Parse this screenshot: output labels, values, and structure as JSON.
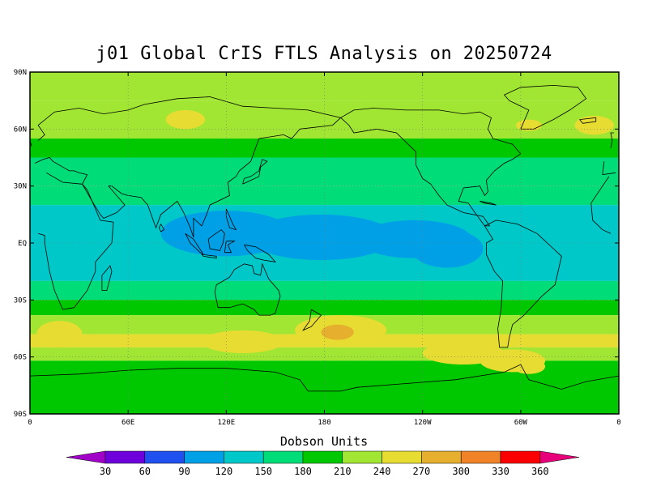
{
  "title": "j01 Global CrIS FTLS Analysis on 20250724",
  "units_label": "Dobson Units",
  "map": {
    "lon_range": [
      0,
      360
    ],
    "lat_range": [
      -90,
      90
    ],
    "lat_ticks": [
      {
        "lat": 90,
        "label": "90N"
      },
      {
        "lat": 60,
        "label": "60N"
      },
      {
        "lat": 30,
        "label": "30N"
      },
      {
        "lat": 0,
        "label": "EQ"
      },
      {
        "lat": -30,
        "label": "30S"
      },
      {
        "lat": -60,
        "label": "60S"
      },
      {
        "lat": -90,
        "label": "90S"
      }
    ],
    "lon_ticks": [
      {
        "lon": 0,
        "label": "0"
      },
      {
        "lon": 60,
        "label": "60E"
      },
      {
        "lon": 120,
        "label": "120E"
      },
      {
        "lon": 180,
        "label": "180"
      },
      {
        "lon": 240,
        "label": "120W"
      },
      {
        "lon": 300,
        "label": "60W"
      },
      {
        "lon": 360,
        "label": "0"
      }
    ],
    "grid": true
  },
  "colorbar": {
    "levels": [
      30,
      60,
      90,
      120,
      150,
      180,
      210,
      240,
      270,
      300,
      330,
      360
    ],
    "labels": [
      "30",
      "60",
      "90",
      "120",
      "150",
      "180",
      "210",
      "240",
      "270",
      "300",
      "330",
      "360"
    ],
    "colors": [
      "#a000c8",
      "#6e00dc",
      "#2050f0",
      "#00a0e6",
      "#00c8c8",
      "#00dc78",
      "#00c800",
      "#a0e632",
      "#e6dc32",
      "#e6af2d",
      "#f08228",
      "#fa0000",
      "#e6007a"
    ]
  },
  "bands": [
    {
      "lat_min": 75,
      "lat_max": 90,
      "value": 235
    },
    {
      "lat_min": 55,
      "lat_max": 75,
      "value": 215
    },
    {
      "lat_min": 45,
      "lat_max": 55,
      "value": 200
    },
    {
      "lat_min": 30,
      "lat_max": 45,
      "value": 170
    },
    {
      "lat_min": 20,
      "lat_max": 30,
      "value": 150
    },
    {
      "lat_min": -20,
      "lat_max": 20,
      "value": 130
    },
    {
      "lat_min": -30,
      "lat_max": -20,
      "value": 150
    },
    {
      "lat_min": -38,
      "lat_max": -30,
      "value": 180
    },
    {
      "lat_min": -48,
      "lat_max": -38,
      "value": 220
    },
    {
      "lat_min": -55,
      "lat_max": -48,
      "value": 245
    },
    {
      "lat_min": -62,
      "lat_max": -55,
      "value": 225
    },
    {
      "lat_min": -90,
      "lat_max": -62,
      "value": 200
    }
  ],
  "blobs": [
    {
      "lon": 120,
      "lat": 5,
      "rx": 40,
      "ry": 12,
      "value": 100
    },
    {
      "lon": 178,
      "lat": 3,
      "rx": 45,
      "ry": 12,
      "value": 100
    },
    {
      "lon": 235,
      "lat": 2,
      "rx": 35,
      "ry": 10,
      "value": 100
    },
    {
      "lon": 255,
      "lat": -3,
      "rx": 22,
      "ry": 10,
      "value": 100
    },
    {
      "lon": 190,
      "lat": -46,
      "rx": 28,
      "ry": 8,
      "value": 260
    },
    {
      "lon": 188,
      "lat": -47,
      "rx": 10,
      "ry": 4,
      "value": 285
    },
    {
      "lon": 18,
      "lat": -48,
      "rx": 14,
      "ry": 7,
      "value": 255
    },
    {
      "lon": 130,
      "lat": -52,
      "rx": 25,
      "ry": 6,
      "value": 245
    },
    {
      "lon": 265,
      "lat": -58,
      "rx": 25,
      "ry": 6,
      "value": 250
    },
    {
      "lon": 305,
      "lat": -65,
      "rx": 10,
      "ry": 4,
      "value": 265
    },
    {
      "lon": 295,
      "lat": -62,
      "rx": 20,
      "ry": 6,
      "value": 250
    },
    {
      "lon": 95,
      "lat": 65,
      "rx": 12,
      "ry": 5,
      "value": 245
    },
    {
      "lon": 345,
      "lat": 62,
      "rx": 12,
      "ry": 5,
      "value": 245
    },
    {
      "lon": 305,
      "lat": 62,
      "rx": 8,
      "ry": 3,
      "value": 265
    }
  ],
  "coastlines": [
    {
      "name": "africa",
      "points": [
        [
          -17,
          21
        ],
        [
          -10,
          30
        ],
        [
          -6,
          35
        ],
        [
          10,
          37
        ],
        [
          20,
          32
        ],
        [
          32,
          31
        ],
        [
          35,
          28
        ],
        [
          43,
          12
        ],
        [
          51,
          11
        ],
        [
          50,
          0
        ],
        [
          40,
          -10
        ],
        [
          40,
          -15
        ],
        [
          35,
          -25
        ],
        [
          27,
          -34
        ],
        [
          20,
          -35
        ],
        [
          15,
          -25
        ],
        [
          12,
          -15
        ],
        [
          9,
          0
        ],
        [
          9,
          4
        ],
        [
          5,
          5
        ],
        [
          -5,
          5
        ],
        [
          -10,
          7
        ],
        [
          -16,
          12
        ],
        [
          -17,
          21
        ]
      ]
    },
    {
      "name": "eurasia",
      "points": [
        [
          -10,
          36
        ],
        [
          -9,
          43
        ],
        [
          0,
          46
        ],
        [
          -5,
          48
        ],
        [
          5,
          54
        ],
        [
          9,
          57
        ],
        [
          5,
          62
        ],
        [
          15,
          69
        ],
        [
          30,
          71
        ],
        [
          45,
          68
        ],
        [
          60,
          70
        ],
        [
          70,
          73
        ],
        [
          90,
          76
        ],
        [
          110,
          77
        ],
        [
          130,
          72
        ],
        [
          150,
          71
        ],
        [
          170,
          70
        ],
        [
          180,
          68
        ],
        [
          190,
          66
        ],
        [
          185,
          62
        ],
        [
          165,
          60
        ],
        [
          160,
          55
        ],
        [
          155,
          57
        ],
        [
          140,
          55
        ],
        [
          135,
          43
        ],
        [
          128,
          38
        ],
        [
          126,
          35
        ],
        [
          121,
          32
        ],
        [
          122,
          25
        ],
        [
          110,
          20
        ],
        [
          108,
          15
        ],
        [
          105,
          9
        ],
        [
          100,
          13
        ],
        [
          100,
          3
        ],
        [
          98,
          8
        ],
        [
          94,
          16
        ],
        [
          90,
          22
        ],
        [
          80,
          15
        ],
        [
          77,
          8
        ],
        [
          72,
          20
        ],
        [
          68,
          24
        ],
        [
          60,
          25
        ],
        [
          56,
          26
        ],
        [
          50,
          30
        ],
        [
          48,
          30
        ],
        [
          55,
          23
        ],
        [
          58,
          20
        ],
        [
          53,
          16
        ],
        [
          45,
          13
        ],
        [
          43,
          15
        ],
        [
          38,
          22
        ],
        [
          34,
          28
        ],
        [
          32,
          31
        ],
        [
          35,
          36
        ],
        [
          30,
          37
        ],
        [
          27,
          38
        ],
        [
          24,
          38
        ],
        [
          20,
          40
        ],
        [
          14,
          43
        ],
        [
          12,
          45
        ],
        [
          8,
          44
        ],
        [
          3,
          42
        ],
        [
          -2,
          37
        ],
        [
          -10,
          36
        ]
      ]
    },
    {
      "name": "north_america",
      "points": [
        [
          190,
          66
        ],
        [
          198,
          70
        ],
        [
          210,
          71
        ],
        [
          230,
          70
        ],
        [
          250,
          70
        ],
        [
          265,
          68
        ],
        [
          275,
          69
        ],
        [
          282,
          66
        ],
        [
          280,
          60
        ],
        [
          283,
          55
        ],
        [
          295,
          52
        ],
        [
          300,
          47
        ],
        [
          295,
          44
        ],
        [
          290,
          42
        ],
        [
          284,
          38
        ],
        [
          279,
          33
        ],
        [
          280,
          27
        ],
        [
          278,
          25
        ],
        [
          275,
          30
        ],
        [
          265,
          29
        ],
        [
          262,
          22
        ],
        [
          268,
          21
        ],
        [
          272,
          16
        ],
        [
          278,
          9
        ],
        [
          281,
          9
        ],
        [
          277,
          14
        ],
        [
          265,
          16
        ],
        [
          255,
          20
        ],
        [
          250,
          25
        ],
        [
          245,
          31
        ],
        [
          240,
          34
        ],
        [
          236,
          41
        ],
        [
          236,
          48
        ],
        [
          224,
          58
        ],
        [
          212,
          60
        ],
        [
          198,
          58
        ],
        [
          195,
          62
        ],
        [
          190,
          66
        ]
      ]
    },
    {
      "name": "south_america",
      "points": [
        [
          278,
          9
        ],
        [
          285,
          12
        ],
        [
          298,
          10
        ],
        [
          310,
          5
        ],
        [
          320,
          -3
        ],
        [
          325,
          -7
        ],
        [
          321,
          -22
        ],
        [
          313,
          -28
        ],
        [
          302,
          -38
        ],
        [
          295,
          -43
        ],
        [
          293,
          -50
        ],
        [
          292,
          -55
        ],
        [
          287,
          -55
        ],
        [
          286,
          -45
        ],
        [
          288,
          -35
        ],
        [
          289,
          -20
        ],
        [
          284,
          -15
        ],
        [
          279,
          -6
        ],
        [
          279,
          0
        ],
        [
          283,
          2
        ],
        [
          278,
          9
        ]
      ]
    },
    {
      "name": "australia",
      "points": [
        [
          114,
          -22
        ],
        [
          113,
          -26
        ],
        [
          115,
          -34
        ],
        [
          122,
          -34
        ],
        [
          130,
          -32
        ],
        [
          137,
          -35
        ],
        [
          140,
          -38
        ],
        [
          147,
          -38
        ],
        [
          150,
          -37
        ],
        [
          153,
          -28
        ],
        [
          152,
          -25
        ],
        [
          146,
          -19
        ],
        [
          142,
          -11
        ],
        [
          141,
          -17
        ],
        [
          137,
          -16
        ],
        [
          136,
          -12
        ],
        [
          131,
          -11
        ],
        [
          125,
          -14
        ],
        [
          122,
          -18
        ],
        [
          114,
          -22
        ]
      ]
    },
    {
      "name": "greenland",
      "points": [
        [
          300,
          60
        ],
        [
          308,
          60
        ],
        [
          320,
          65
        ],
        [
          330,
          70
        ],
        [
          340,
          76
        ],
        [
          335,
          82
        ],
        [
          320,
          83
        ],
        [
          300,
          82
        ],
        [
          290,
          78
        ],
        [
          293,
          75
        ],
        [
          305,
          70
        ],
        [
          300,
          60
        ]
      ]
    },
    {
      "name": "antarctica",
      "points": [
        [
          0,
          -70
        ],
        [
          30,
          -69
        ],
        [
          60,
          -67
        ],
        [
          90,
          -66
        ],
        [
          120,
          -66
        ],
        [
          150,
          -68
        ],
        [
          165,
          -72
        ],
        [
          170,
          -78
        ],
        [
          190,
          -78
        ],
        [
          200,
          -76
        ],
        [
          230,
          -74
        ],
        [
          260,
          -72
        ],
        [
          290,
          -68
        ],
        [
          300,
          -64
        ],
        [
          305,
          -72
        ],
        [
          325,
          -77
        ],
        [
          340,
          -73
        ],
        [
          360,
          -70
        ]
      ]
    },
    {
      "name": "japan",
      "points": [
        [
          130,
          31
        ],
        [
          131,
          34
        ],
        [
          135,
          35
        ],
        [
          140,
          38
        ],
        [
          141,
          41
        ],
        [
          142,
          44
        ],
        [
          145,
          43
        ],
        [
          141,
          40
        ],
        [
          140,
          35
        ],
        [
          135,
          33
        ],
        [
          130,
          31
        ]
      ]
    },
    {
      "name": "uk",
      "points": [
        [
          -5,
          50
        ],
        [
          1,
          51
        ],
        [
          0,
          54
        ],
        [
          -3,
          58
        ],
        [
          -5,
          58
        ],
        [
          -4,
          54
        ],
        [
          -5,
          50
        ]
      ]
    },
    {
      "name": "madagascar",
      "points": [
        [
          44,
          -25
        ],
        [
          47,
          -25
        ],
        [
          50,
          -15
        ],
        [
          49,
          -12
        ],
        [
          44,
          -17
        ],
        [
          44,
          -25
        ]
      ]
    },
    {
      "name": "borneo",
      "points": [
        [
          109,
          2
        ],
        [
          112,
          4
        ],
        [
          117,
          7
        ],
        [
          119,
          5
        ],
        [
          118,
          0
        ],
        [
          116,
          -4
        ],
        [
          110,
          -3
        ],
        [
          109,
          2
        ]
      ]
    },
    {
      "name": "sumatra",
      "points": [
        [
          95,
          5
        ],
        [
          100,
          2
        ],
        [
          106,
          -6
        ],
        [
          104,
          -5
        ],
        [
          98,
          0
        ],
        [
          95,
          5
        ]
      ]
    },
    {
      "name": "new_guinea",
      "points": [
        [
          131,
          -1
        ],
        [
          138,
          -2
        ],
        [
          146,
          -6
        ],
        [
          150,
          -10
        ],
        [
          143,
          -9
        ],
        [
          138,
          -8
        ],
        [
          133,
          -4
        ],
        [
          131,
          -1
        ]
      ]
    },
    {
      "name": "new_zealand",
      "points": [
        [
          172,
          -35
        ],
        [
          178,
          -38
        ],
        [
          175,
          -41
        ],
        [
          172,
          -44
        ],
        [
          167,
          -46
        ],
        [
          171,
          -41
        ],
        [
          172,
          -35
        ]
      ]
    },
    {
      "name": "philippines",
      "points": [
        [
          120,
          18
        ],
        [
          122,
          14
        ],
        [
          124,
          10
        ],
        [
          126,
          7
        ],
        [
          122,
          8
        ],
        [
          120,
          14
        ],
        [
          120,
          18
        ]
      ]
    },
    {
      "name": "iceland",
      "points": [
        [
          -24,
          65
        ],
        [
          -14,
          66
        ],
        [
          -14,
          64
        ],
        [
          -22,
          63
        ],
        [
          -24,
          65
        ]
      ]
    },
    {
      "name": "sri_lanka",
      "points": [
        [
          80,
          10
        ],
        [
          82,
          7
        ],
        [
          80,
          6
        ],
        [
          79,
          8
        ],
        [
          80,
          10
        ]
      ]
    },
    {
      "name": "cuba",
      "points": [
        [
          275,
          22
        ],
        [
          282,
          21
        ],
        [
          285,
          20
        ],
        [
          278,
          21
        ],
        [
          275,
          22
        ]
      ]
    },
    {
      "name": "java",
      "points": [
        [
          105,
          -6
        ],
        [
          114,
          -7
        ],
        [
          114,
          -8
        ],
        [
          106,
          -7
        ],
        [
          105,
          -6
        ]
      ]
    },
    {
      "name": "sulawesi",
      "points": [
        [
          119,
          -5
        ],
        [
          120,
          1
        ],
        [
          125,
          1
        ],
        [
          121,
          -1
        ],
        [
          123,
          -5
        ],
        [
          119,
          -5
        ]
      ]
    }
  ]
}
